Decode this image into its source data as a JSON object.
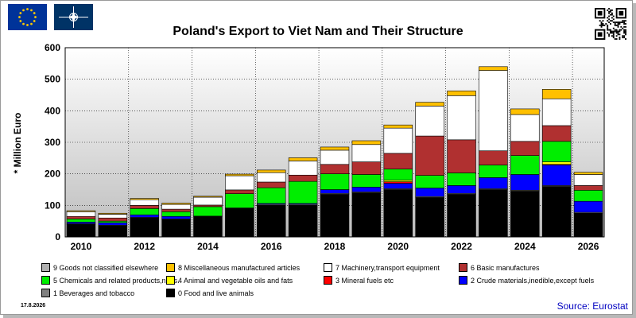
{
  "header": {
    "title": "Poland's Export to Viet Nam and Their Structure",
    "flags": [
      "eu-flag-icon",
      "nato-flag-icon"
    ],
    "qr": "qr-code-icon"
  },
  "footer": {
    "date": "17.8.2026",
    "source": "Source: Eurostat"
  },
  "chart_data": {
    "type": "bar",
    "stacked": true,
    "title": "Poland's Export to Viet Nam and Their Structure",
    "xlabel": "",
    "ylabel": "* Million Euro",
    "ylim": [
      0,
      600
    ],
    "yticks": [
      0,
      100,
      200,
      300,
      400,
      500,
      600
    ],
    "x_tick_labels": [
      "2010",
      "2012",
      "2014",
      "2016",
      "2018",
      "2020",
      "2022",
      "2024",
      "2026"
    ],
    "grid": true,
    "legend_position": "bottom",
    "categories": [
      "2010",
      "2011",
      "2012",
      "2013",
      "2014",
      "2015",
      "2016",
      "2017",
      "2018",
      "2019",
      "2020",
      "2021",
      "2022",
      "2023",
      "2024",
      "2025",
      "2026"
    ],
    "series": [
      {
        "name": "0 Food and live animals",
        "color": "#000000",
        "values": [
          40,
          35,
          60,
          55,
          65,
          90,
          100,
          100,
          135,
          140,
          150,
          125,
          135,
          150,
          145,
          160,
          75
        ]
      },
      {
        "name": "1 Beverages and tobacco",
        "color": "#808080",
        "values": [
          2,
          2,
          2,
          2,
          1,
          2,
          3,
          3,
          3,
          3,
          3,
          3,
          3,
          3,
          3,
          3,
          3
        ]
      },
      {
        "name": "2 Crude materials,inedible,except fuels",
        "color": "#0000ff",
        "values": [
          5,
          8,
          8,
          8,
          0,
          0,
          3,
          3,
          12,
          15,
          17,
          27,
          25,
          35,
          50,
          65,
          35
        ]
      },
      {
        "name": "3 Mineral fuels etc",
        "color": "#ff0000",
        "values": [
          0,
          0,
          0,
          0,
          0,
          0,
          0,
          0,
          0,
          0,
          5,
          0,
          0,
          0,
          0,
          2,
          0
        ]
      },
      {
        "name": "4 Animal and vegetable oils and fats",
        "color": "#ffff00",
        "values": [
          0,
          0,
          0,
          0,
          0,
          0,
          0,
          0,
          0,
          0,
          5,
          0,
          0,
          0,
          0,
          8,
          0
        ]
      },
      {
        "name": "5 Chemicals and related products,n.e.s.",
        "color": "#00ee00",
        "values": [
          10,
          5,
          20,
          15,
          30,
          45,
          50,
          70,
          50,
          40,
          35,
          40,
          40,
          40,
          60,
          65,
          35
        ]
      },
      {
        "name": "6 Basic manufactures",
        "color": "#b03030",
        "values": [
          8,
          10,
          10,
          8,
          5,
          12,
          18,
          20,
          30,
          40,
          50,
          125,
          105,
          45,
          45,
          50,
          15
        ]
      },
      {
        "name": "7 Machinery,transport equipment",
        "color": "#ffffff",
        "values": [
          15,
          12,
          18,
          15,
          25,
          45,
          30,
          45,
          45,
          55,
          80,
          95,
          140,
          255,
          85,
          85,
          35
        ]
      },
      {
        "name": "8 Miscellaneous manufactured articles",
        "color": "#ffc000",
        "values": [
          3,
          3,
          4,
          4,
          3,
          5,
          8,
          10,
          10,
          12,
          10,
          12,
          15,
          12,
          18,
          30,
          7
        ]
      },
      {
        "name": "9 Goods not classified elsewhere",
        "color": "#b0b0b0",
        "values": [
          0,
          0,
          0,
          0,
          0,
          0,
          0,
          0,
          0,
          0,
          0,
          0,
          0,
          0,
          0,
          0,
          0
        ]
      }
    ]
  },
  "legend_order": [
    9,
    8,
    7,
    6,
    5,
    4,
    3,
    2,
    1,
    0
  ]
}
